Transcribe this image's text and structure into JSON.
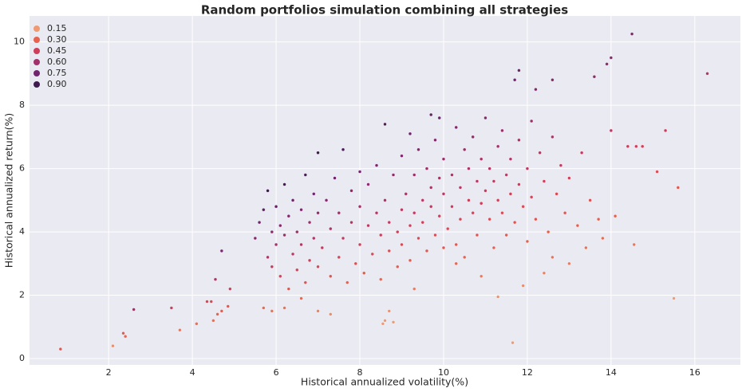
{
  "chart_data": {
    "type": "scatter",
    "title": "Random portfolios simulation combining all strategies",
    "x_label": "Historical annualized volatility(%)",
    "y_label": "Historical annualized return(%)",
    "xlim": [
      0.11,
      17.09
    ],
    "ylim": [
      -0.2,
      10.82
    ],
    "xticks": [
      2,
      4,
      6,
      8,
      10,
      12,
      14,
      16
    ],
    "yticks": [
      0,
      2,
      4,
      6,
      8,
      10
    ],
    "grid": true,
    "legend_position": "upper-left",
    "legend": [
      {
        "value": 0.15,
        "color": "#f09a72"
      },
      {
        "value": {
          "value": 0.3,
          "label": "0.30"
        },
        "color": "#e8634f"
      },
      {
        "value": 0.45,
        "color": "#cf3f5a"
      },
      {
        "value": {
          "value": 0.6,
          "label": "0.60"
        },
        "color": "#a3306b"
      },
      {
        "value": 0.75,
        "color": "#72256f"
      },
      {
        "value": {
          "value": 0.9,
          "label": "0.90"
        },
        "color": "#3f1a4f"
      }
    ],
    "x": [
      0.85,
      2.1,
      2.35,
      2.4,
      2.6,
      3.5,
      3.7,
      4.1,
      4.35,
      4.45,
      4.5,
      4.6,
      4.55,
      4.7,
      4.85,
      4.9,
      4.7,
      14.5,
      16.3,
      14,
      13.9,
      13.6,
      14,
      15.3,
      15.6,
      15.5,
      11.65,
      11.3,
      8.7,
      8.55,
      8.8,
      8.6,
      14.55,
      14.1,
      15.1,
      14.4,
      14.6,
      14.75,
      12.2,
      12.6,
      11.8,
      11.7,
      8.6,
      9.2,
      9.7,
      9.9,
      5.5,
      5.6,
      5.7,
      5.8,
      5.8,
      5.9,
      5.9,
      6.0,
      6.0,
      6.1,
      6.1,
      6.2,
      6.2,
      6.3,
      6.3,
      6.4,
      6.4,
      6.5,
      6.5,
      6.6,
      6.6,
      6.7,
      6.7,
      6.8,
      6.8,
      6.9,
      6.9,
      7.0,
      7.0,
      7.0,
      5.7,
      5.9,
      6.2,
      6.6,
      7.0,
      7.3,
      7.1,
      7.2,
      7.3,
      7.3,
      7.4,
      7.5,
      7.5,
      7.6,
      7.6,
      7.7,
      7.8,
      7.8,
      7.9,
      8.0,
      8.0,
      8.0,
      8.1,
      8.2,
      8.2,
      8.3,
      8.4,
      8.4,
      8.5,
      8.5,
      8.6,
      8.7,
      8.7,
      8.8,
      8.9,
      8.9,
      9.0,
      9.0,
      9.0,
      9.1,
      9.2,
      9.2,
      9.3,
      9.3,
      9.4,
      9.4,
      9.5,
      9.5,
      9.6,
      9.6,
      9.7,
      9.7,
      9.8,
      9.8,
      9.9,
      9.9,
      10.0,
      10.0,
      10.0,
      10.1,
      10.2,
      10.2,
      10.3,
      10.3,
      10.4,
      10.4,
      10.5,
      10.5,
      10.6,
      10.6,
      10.7,
      10.7,
      10.8,
      10.8,
      10.9,
      10.9,
      11.0,
      11.0,
      11.1,
      11.1,
      11.2,
      11.2,
      11.3,
      11.3,
      11.4,
      11.4,
      11.5,
      11.5,
      11.6,
      11.6,
      11.7,
      11.8,
      11.8,
      11.9,
      12.0,
      12.0,
      12.1,
      12.1,
      12.2,
      12.3,
      12.4,
      12.5,
      12.6,
      12.6,
      12.7,
      12.8,
      12.9,
      13.0,
      13.0,
      13.2,
      13.3,
      13.4,
      13.5,
      13.7,
      13.8,
      12.4,
      11.9,
      10.9,
      10.3,
      9.3
    ],
    "values": [
      0.3,
      0.4,
      0.8,
      0.7,
      1.55,
      1.6,
      0.9,
      1.1,
      1.8,
      1.8,
      1.2,
      1.4,
      2.5,
      1.5,
      1.65,
      2.2,
      3.4,
      10.25,
      9,
      9.5,
      9.3,
      8.9,
      7.2,
      7.2,
      5.4,
      1.9,
      0.5,
      1.95,
      1.5,
      1.1,
      1.15,
      1.2,
      3.6,
      4.5,
      5.9,
      6.7,
      6.7,
      6.7,
      8.5,
      8.8,
      9.1,
      8.8,
      7.4,
      7.1,
      7.7,
      7.6,
      3.8,
      4.3,
      4.7,
      5.3,
      3.2,
      2.9,
      4.0,
      4.8,
      3.6,
      2.6,
      4.2,
      5.5,
      3.9,
      2.2,
      4.5,
      3.3,
      5.0,
      4.0,
      2.8,
      4.7,
      3.6,
      5.8,
      2.4,
      4.3,
      3.1,
      5.2,
      3.8,
      6.5,
      4.6,
      2.9,
      1.6,
      1.5,
      1.6,
      1.9,
      1.5,
      1.4,
      3.5,
      5.0,
      4.1,
      2.6,
      5.7,
      3.2,
      4.6,
      6.6,
      3.8,
      2.4,
      5.3,
      4.3,
      3.0,
      5.9,
      3.6,
      4.8,
      2.7,
      4.2,
      5.5,
      3.3,
      4.6,
      6.1,
      3.9,
      2.5,
      5.0,
      4.3,
      3.4,
      5.8,
      4.0,
      2.9,
      6.4,
      4.7,
      3.6,
      5.2,
      4.2,
      3.1,
      5.8,
      4.6,
      3.8,
      6.6,
      5.0,
      4.3,
      3.4,
      6.0,
      4.8,
      5.4,
      3.9,
      6.9,
      4.5,
      5.7,
      3.5,
      5.2,
      6.3,
      4.1,
      5.8,
      4.8,
      7.3,
      3.6,
      5.4,
      4.4,
      6.6,
      3.2,
      5.0,
      6.0,
      4.6,
      7.0,
      5.6,
      3.9,
      6.3,
      4.9,
      7.6,
      5.3,
      4.4,
      6.0,
      5.6,
      3.5,
      6.7,
      5.0,
      4.6,
      7.2,
      5.8,
      3.9,
      6.3,
      5.2,
      4.3,
      6.9,
      5.5,
      4.8,
      6.0,
      3.7,
      7.5,
      5.1,
      4.4,
      6.5,
      5.6,
      4.0,
      7.0,
      3.2,
      5.2,
      6.1,
      4.6,
      3.0,
      5.7,
      4.2,
      6.5,
      3.5,
      5.0,
      4.4,
      3.8,
      2.7,
      2.3,
      2.6,
      3.0,
      2.2
    ]
  }
}
